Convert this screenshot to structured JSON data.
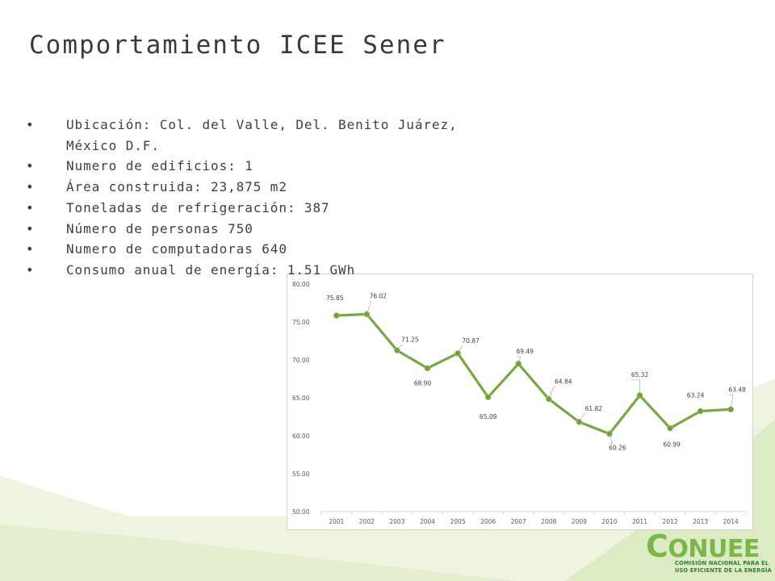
{
  "slide": {
    "title": "Comportamiento ICEE Sener",
    "bullets": [
      "Ubicación: Col. del Valle, Del. Benito Juárez, México D.F.",
      "Numero de edificios: 1",
      "Área construida: 23,875 m2",
      "Toneladas de refrigeración: 387",
      "Número de personas 750",
      "Numero de computadoras 640",
      "Consumo anual de energía: 1.51 GWh"
    ]
  },
  "logo": {
    "word_first": "C",
    "word_rest": "ONUEE",
    "subtitle_line1": "COMISIÓN NACIONAL PARA EL",
    "subtitle_line2": "USO EFICIENTE DE LA ENERGÍA"
  },
  "colors": {
    "line": "#77a843",
    "marker": "#6f9f3b",
    "decor_light": "#eef4df",
    "decor_mid": "#dcebc4",
    "brand_green": "#7ab648"
  },
  "chart_data": {
    "type": "line",
    "title": "",
    "xlabel": "",
    "ylabel": "",
    "categories": [
      "2001",
      "2002",
      "2003",
      "2004",
      "2005",
      "2006",
      "2007",
      "2008",
      "2009",
      "2010",
      "2011",
      "2012",
      "2013",
      "2014"
    ],
    "series": [
      {
        "values": [
          75.85,
          76.02,
          71.25,
          68.9,
          70.87,
          65.09,
          69.49,
          64.84,
          61.82,
          60.26,
          65.32,
          60.99,
          63.24,
          63.48
        ]
      }
    ],
    "data_labels": [
      "75.85",
      "76.02",
      "71.25",
      "68.90",
      "70.87",
      "65.09",
      "69.49",
      "64.84",
      "61.82",
      "60.26",
      "65.32",
      "60.99",
      "63.24",
      "63.48"
    ],
    "ylim": [
      50,
      80
    ],
    "yticks": [
      "50.00",
      "55.00",
      "60.00",
      "65.00",
      "70.00",
      "75.00",
      "80.00"
    ],
    "grid": false,
    "legend": "none"
  }
}
